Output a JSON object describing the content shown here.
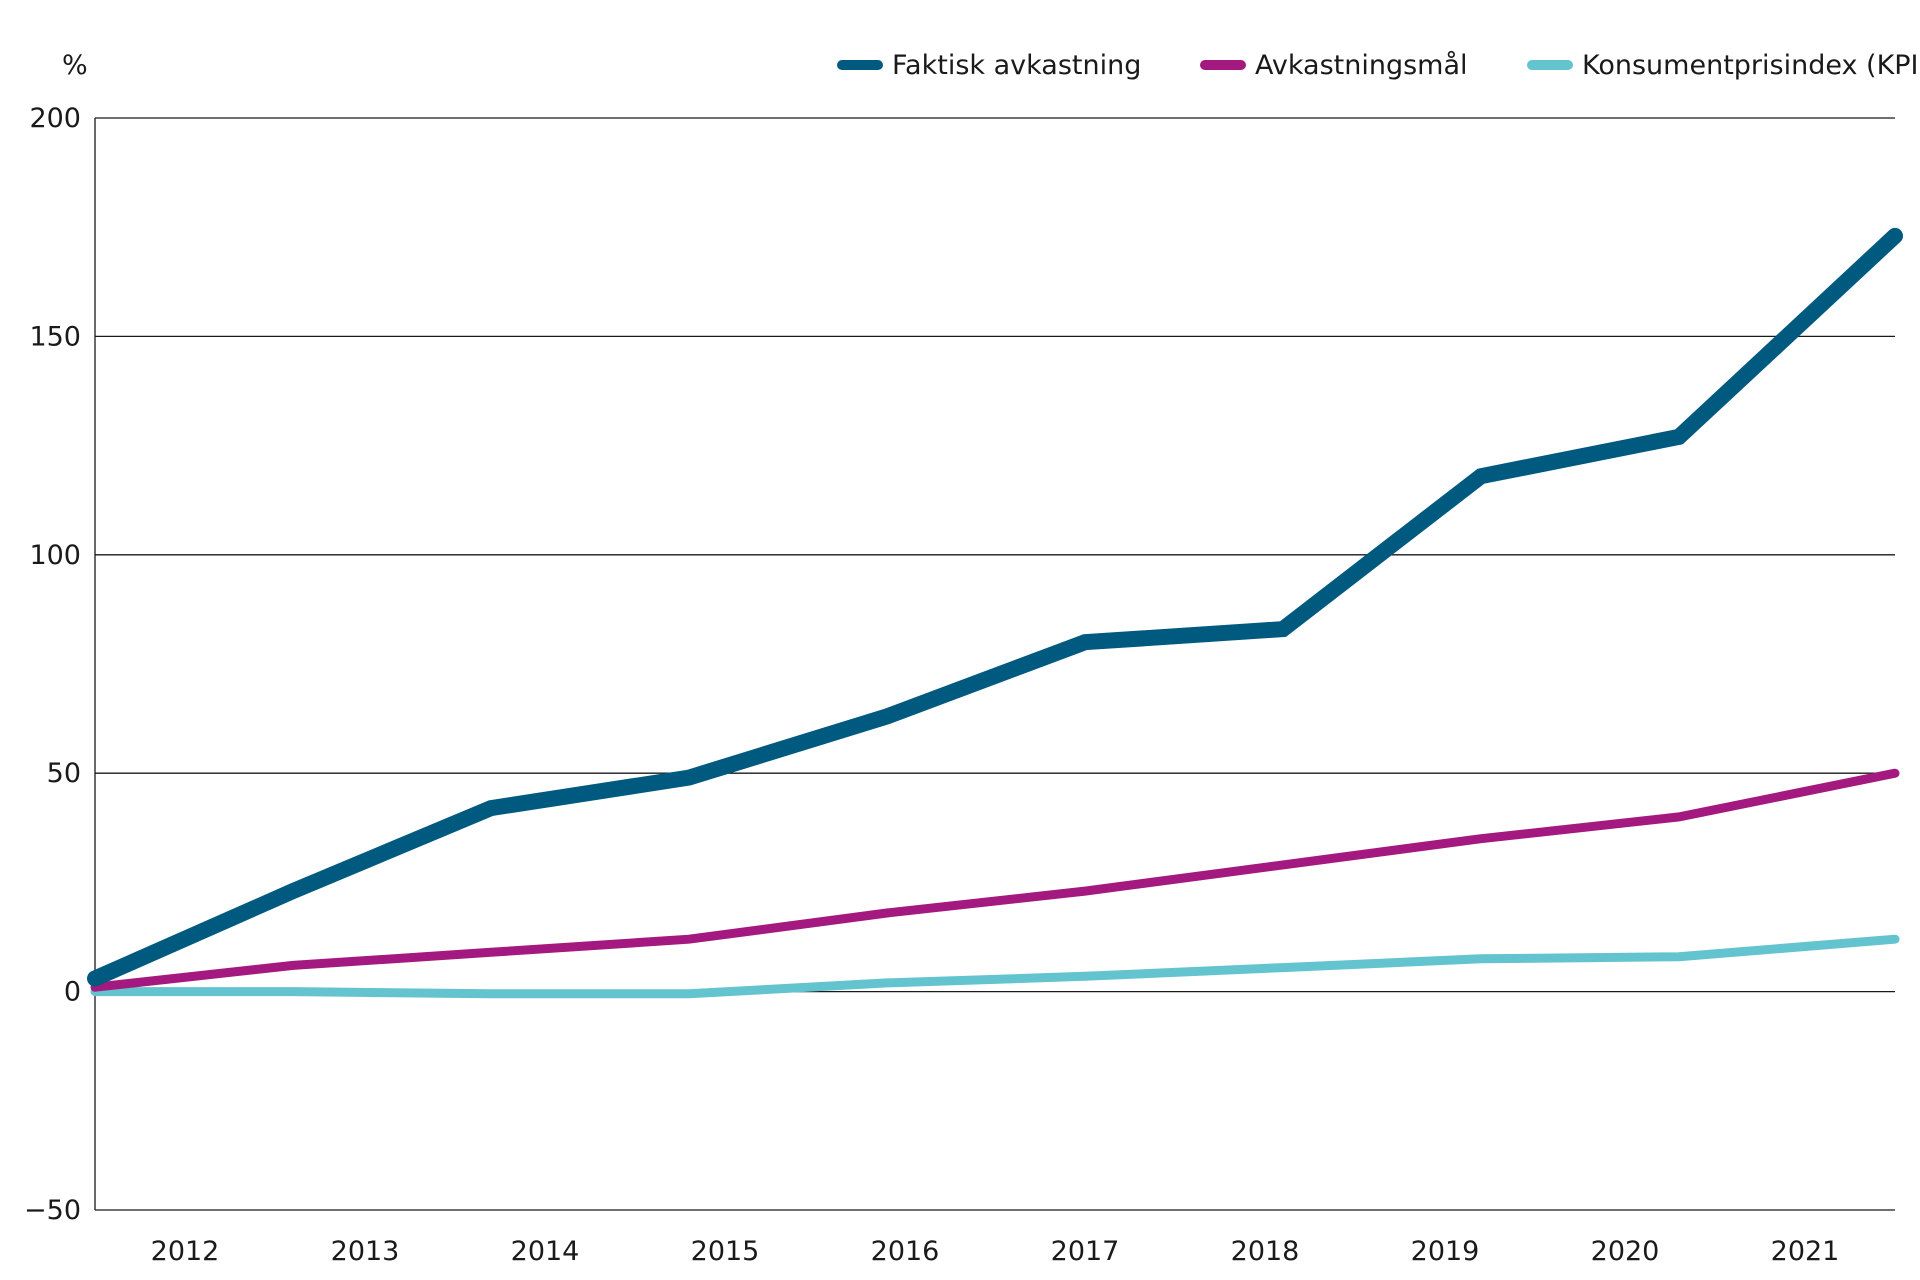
{
  "chart_data": {
    "type": "line",
    "ylabel": "%",
    "ylim": [
      -50,
      200
    ],
    "yticks": [
      -50,
      0,
      50,
      100,
      150,
      200
    ],
    "grid": true,
    "legend_position": "top-right",
    "x": [
      2011.5,
      2012.6,
      2013.7,
      2014.8,
      2015.9,
      2017.0,
      2018.1,
      2019.2,
      2020.3,
      2021.5
    ],
    "xticks": [
      "2012",
      "2013",
      "2014",
      "2015",
      "2016",
      "2017",
      "2018",
      "2019",
      "2020",
      "2021"
    ],
    "series": [
      {
        "name": "Faktisk avkastning",
        "color": "#005a7f",
        "values": [
          3,
          23,
          42,
          49,
          63,
          80,
          83,
          118,
          127,
          173
        ]
      },
      {
        "name": "Avkastningsmål",
        "color": "#a4197f",
        "values": [
          1,
          6,
          9,
          12,
          18,
          23,
          29,
          35,
          40,
          50
        ]
      },
      {
        "name": "Konsumentprisindex (KPI)",
        "color": "#63c3cf",
        "values": [
          0,
          0,
          -0.5,
          -0.5,
          2,
          3.5,
          5.5,
          7.5,
          8,
          12
        ]
      }
    ]
  }
}
